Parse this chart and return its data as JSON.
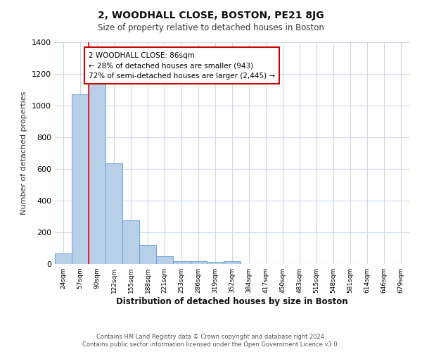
{
  "title": "2, WOODHALL CLOSE, BOSTON, PE21 8JG",
  "subtitle": "Size of property relative to detached houses in Boston",
  "xlabel": "Distribution of detached houses by size in Boston",
  "ylabel": "Number of detached properties",
  "bar_labels": [
    "24sqm",
    "57sqm",
    "90sqm",
    "122sqm",
    "155sqm",
    "188sqm",
    "221sqm",
    "253sqm",
    "286sqm",
    "319sqm",
    "352sqm",
    "384sqm",
    "417sqm",
    "450sqm",
    "483sqm",
    "515sqm",
    "548sqm",
    "581sqm",
    "614sqm",
    "646sqm",
    "679sqm"
  ],
  "bar_values": [
    65,
    1070,
    1155,
    635,
    275,
    120,
    48,
    20,
    20,
    15,
    18,
    0,
    0,
    0,
    0,
    0,
    0,
    0,
    0,
    0,
    0
  ],
  "bar_color": "#b8cfe8",
  "bar_edge_color": "#5b9bd5",
  "ylim": [
    0,
    1400
  ],
  "yticks": [
    0,
    200,
    400,
    600,
    800,
    1000,
    1200,
    1400
  ],
  "red_line_index": 2,
  "annotation_title": "2 WOODHALL CLOSE: 86sqm",
  "annotation_line1": "← 28% of detached houses are smaller (943)",
  "annotation_line2": "72% of semi-detached houses are larger (2,445) →",
  "annotation_box_color": "#ffffff",
  "annotation_box_edge_color": "#cc0000",
  "footer_line1": "Contains HM Land Registry data © Crown copyright and database right 2024.",
  "footer_line2": "Contains public sector information licensed under the Open Government Licence v3.0.",
  "background_color": "#ffffff",
  "grid_color": "#ccd8ea"
}
